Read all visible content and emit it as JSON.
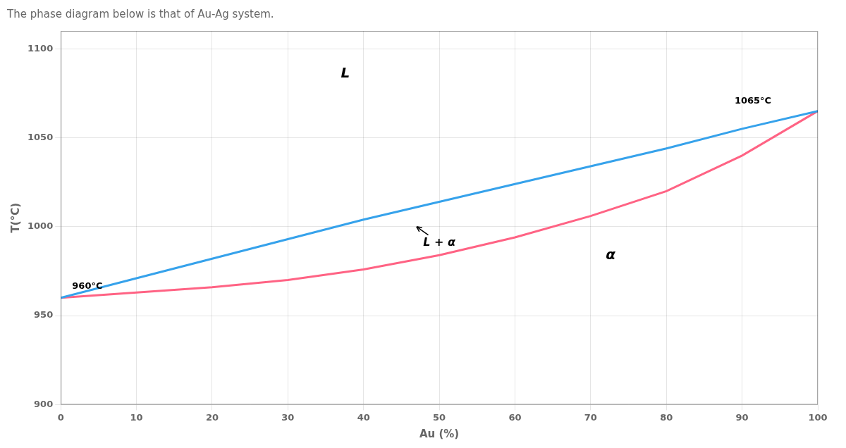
{
  "chart_data": {
    "type": "line",
    "title": "The phase diagram below is that of Au-Ag system.",
    "xlabel": "Au (%)",
    "ylabel": "T(°C)",
    "x": [
      0,
      10,
      20,
      30,
      40,
      50,
      60,
      70,
      80,
      90,
      100
    ],
    "series": [
      {
        "values": [
          960,
          971,
          982,
          993,
          1004,
          1014,
          1024,
          1034,
          1044,
          1055,
          1065
        ]
      },
      {
        "values": [
          960,
          963,
          966,
          970,
          976,
          984,
          994,
          1006,
          1020,
          1040,
          1065
        ]
      }
    ],
    "xlim": [
      0,
      100
    ],
    "ylim": [
      900,
      1110
    ],
    "xticks": [
      0,
      10,
      20,
      30,
      40,
      50,
      60,
      70,
      80,
      90,
      100
    ],
    "yticks": [
      900,
      950,
      1000,
      1050,
      1100
    ],
    "grid": true,
    "annotations": [
      {
        "text": "L",
        "x": 37,
        "y": 1082
      },
      {
        "text": "L + α",
        "x": 50,
        "y": 991,
        "arrow_to": [
          47,
          1000
        ]
      },
      {
        "text": "α",
        "x": 72,
        "y": 980
      },
      {
        "text": "960°C",
        "x": 1.5,
        "y": 964
      },
      {
        "text": "1065°C",
        "x": 89,
        "y": 1068
      }
    ]
  }
}
